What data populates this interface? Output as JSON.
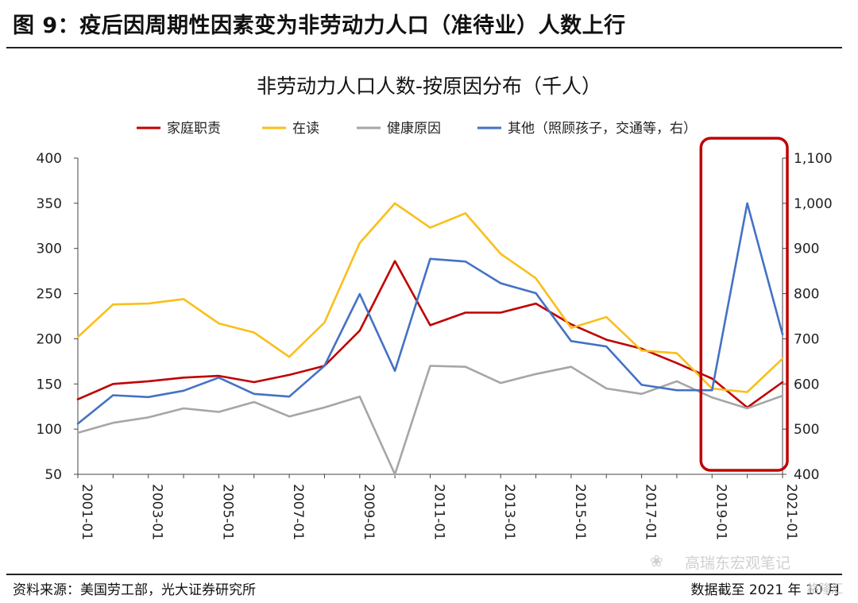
{
  "figure_title": "图 9：疫后因周期性因素变为非劳动力人口（准待业）人数上行",
  "footer": {
    "source": "资料来源：美国劳工部，光大证券研究所",
    "cutoff": "数据截至 2021 年 10 月"
  },
  "watermark": {
    "text": "高瑞东宏观笔记",
    "corner": "格隆汇"
  },
  "colors": {
    "series_red": "#c00000",
    "series_yellow": "#f9bf1a",
    "series_gray": "#a6a6a6",
    "series_blue": "#4472c4",
    "highlight_box": "#c00000"
  },
  "chart_data": {
    "type": "line",
    "title": "非劳动力人口人数-按原因分布（千人）",
    "x": [
      "2001-01",
      "2002-01",
      "2003-01",
      "2004-01",
      "2005-01",
      "2006-01",
      "2007-01",
      "2008-01",
      "2009-01",
      "2010-01",
      "2011-01",
      "2012-01",
      "2013-01",
      "2014-01",
      "2015-01",
      "2016-01",
      "2017-01",
      "2018-01",
      "2019-01",
      "2020-01",
      "2021-01"
    ],
    "x_tick_labels": [
      "2001-01",
      "2003-01",
      "2005-01",
      "2007-01",
      "2009-01",
      "2011-01",
      "2013-01",
      "2015-01",
      "2017-01",
      "2019-01",
      "2021-01"
    ],
    "ylim_left": [
      50,
      400
    ],
    "yticks_left": [
      "400",
      "350",
      "300",
      "250",
      "200",
      "150",
      "100",
      "50"
    ],
    "ylim_right": [
      400,
      1100
    ],
    "yticks_right": [
      "1,100",
      "1,000",
      "900",
      "800",
      "700",
      "600",
      "500",
      "400"
    ],
    "series": [
      {
        "name": "家庭职责",
        "axis": "left",
        "color": "#c00000",
        "values": [
          133,
          150,
          153,
          157,
          159,
          152,
          160,
          170,
          209,
          286,
          215,
          229,
          229,
          239,
          216,
          199,
          189,
          173,
          156,
          124,
          152
        ]
      },
      {
        "name": "在读",
        "axis": "left",
        "color": "#f9bf1a",
        "values": [
          202,
          238,
          239,
          244,
          217,
          207,
          180,
          218,
          306,
          350,
          323,
          339,
          294,
          267,
          212,
          224,
          187,
          184,
          145,
          141,
          178
        ]
      },
      {
        "name": "健康原因",
        "axis": "left",
        "color": "#a6a6a6",
        "values": [
          96,
          107,
          113,
          123,
          119,
          130,
          114,
          124,
          136,
          50,
          170,
          169,
          151,
          161,
          169,
          145,
          139,
          153,
          135,
          123,
          137
        ]
      },
      {
        "name": "其他（照顾孩子，交通等，右）",
        "axis": "right",
        "color": "#4472c4",
        "values": [
          512,
          575,
          571,
          585,
          614,
          578,
          572,
          640,
          799,
          629,
          877,
          871,
          823,
          801,
          695,
          683,
          598,
          586,
          586,
          1000,
          710
        ]
      }
    ],
    "highlight": {
      "from": "2019-01",
      "to": "2021-01"
    }
  }
}
